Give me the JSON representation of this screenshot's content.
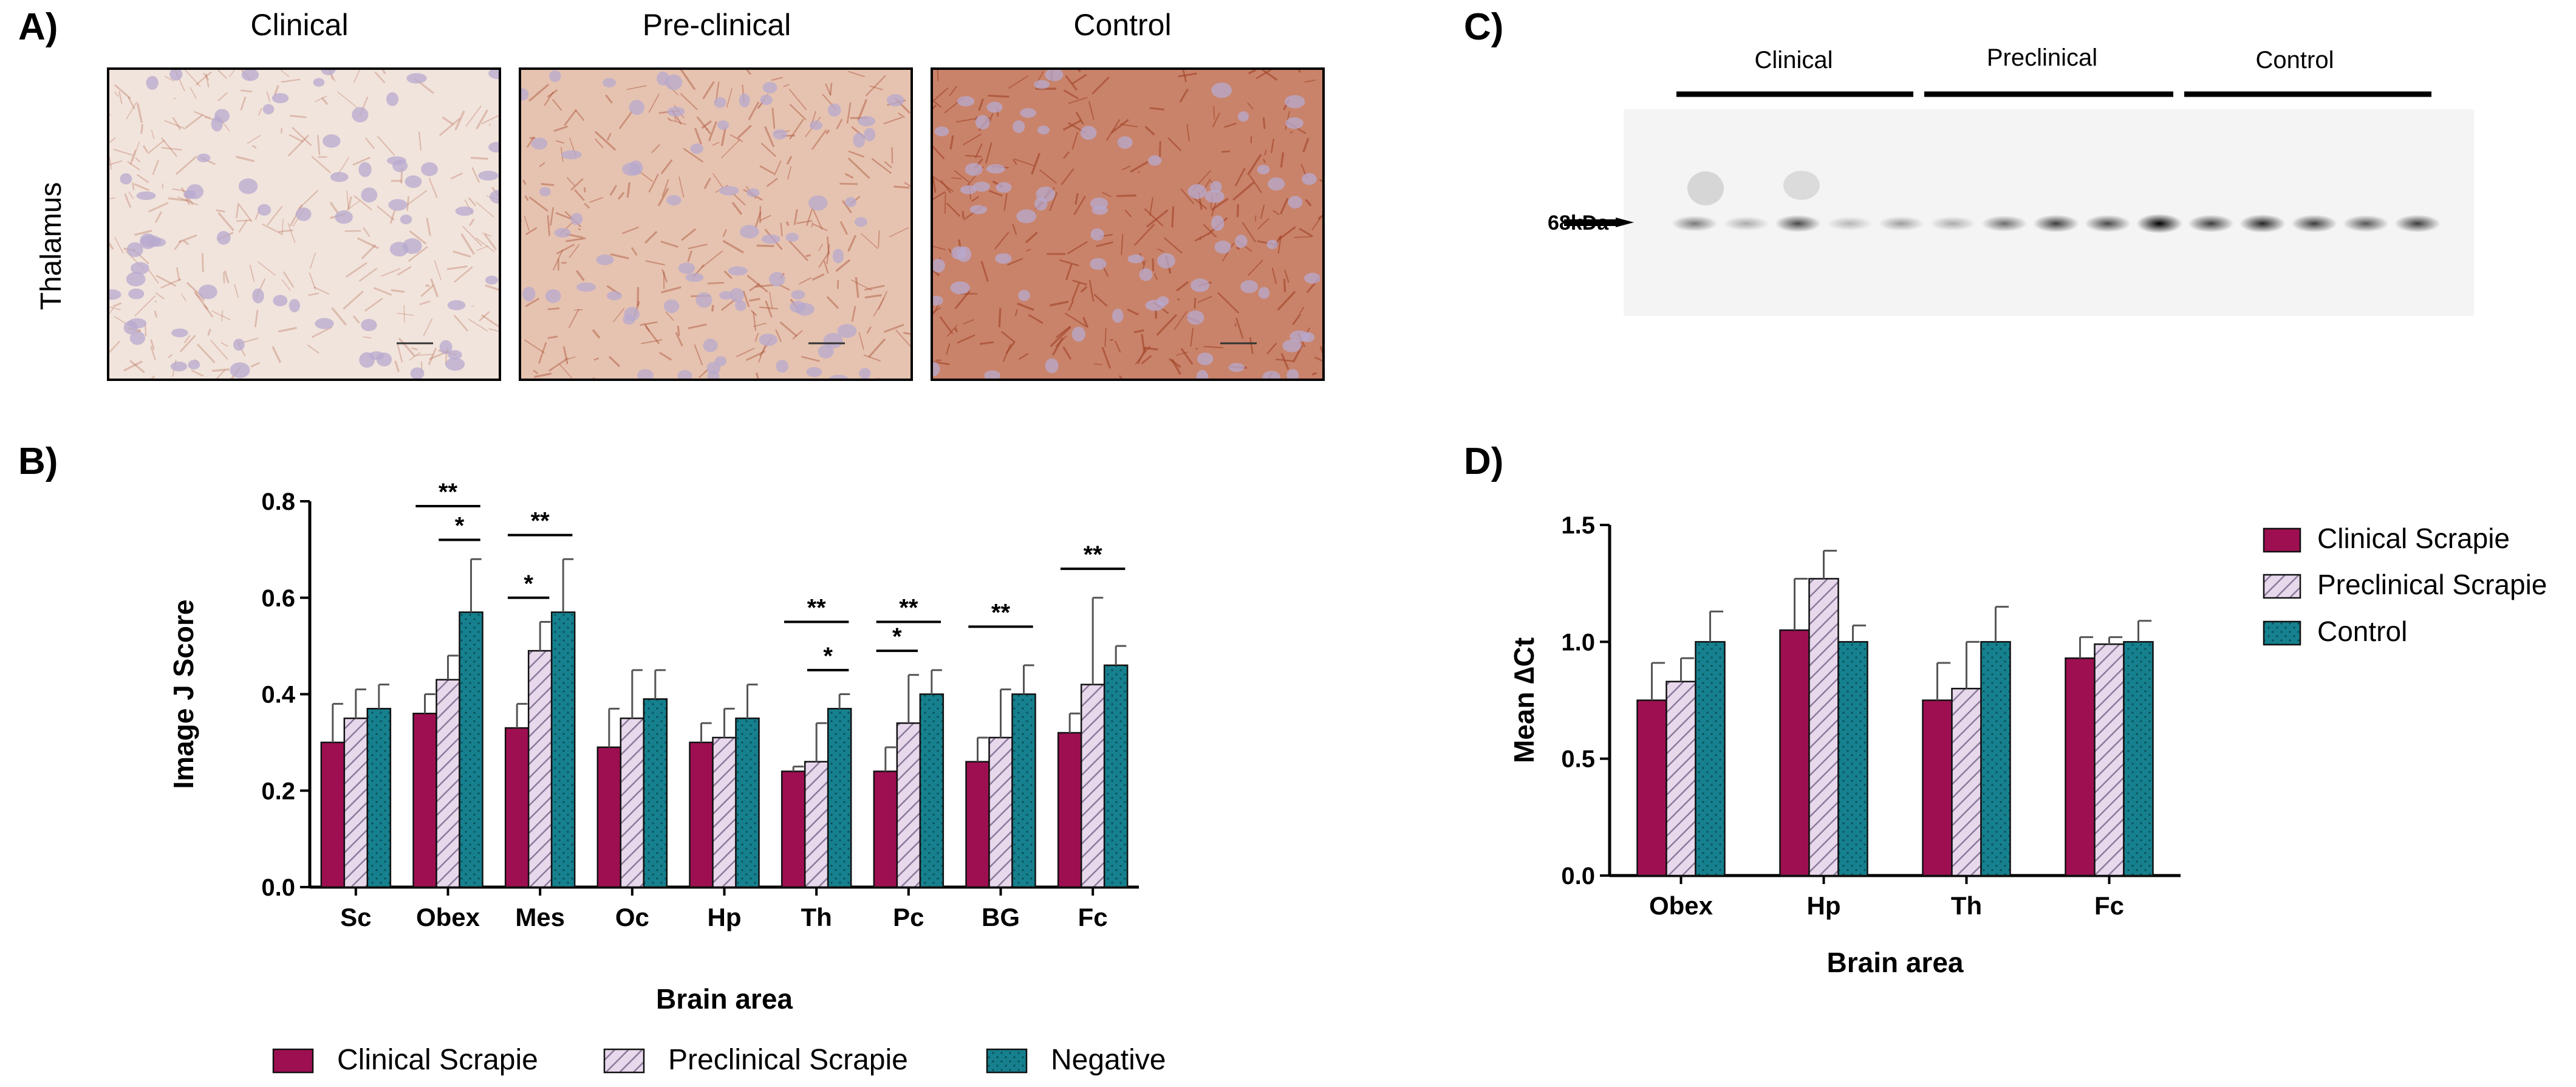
{
  "panel_labels": {
    "a": "A)",
    "b": "B)",
    "c": "C)",
    "d": "D)"
  },
  "panel_a": {
    "row_label": "Thalamus",
    "columns": [
      "Clinical",
      "Pre-clinical",
      "Control"
    ],
    "stain_colors": {
      "light": "#f1e4dc",
      "medium": "#e6c3b0",
      "dark": "#c9836a",
      "cells": "#b7a9cf",
      "fibers": "#a4462a"
    }
  },
  "panel_c": {
    "groups": [
      "Clinical",
      "Preclinical",
      "Control"
    ],
    "band_label": "68kDa",
    "lane_intensities": [
      0.35,
      0.15,
      0.55,
      0.1,
      0.2,
      0.15,
      0.4,
      0.6,
      0.55,
      0.85,
      0.6,
      0.7,
      0.6,
      0.5,
      0.6
    ]
  },
  "colors": {
    "clinical": "#9e0f52",
    "preclinical_fill": "#e8d8ec",
    "preclinical_hatch": "#8a7a9a",
    "control": "#16808e"
  },
  "chart_data": [
    {
      "id": "B",
      "type": "bar",
      "title": "",
      "xlabel": "Brain area",
      "ylabel": "Image J Score",
      "ylim": [
        0,
        0.8
      ],
      "yticks": [
        "0.0",
        "0.2",
        "0.4",
        "0.6",
        "0.8"
      ],
      "categories": [
        "Sc",
        "Obex",
        "Mes",
        "Oc",
        "Hp",
        "Th",
        "Pc",
        "BG",
        "Fc"
      ],
      "series": [
        {
          "name": "Clinical Scrapie",
          "values": [
            0.3,
            0.36,
            0.33,
            0.29,
            0.3,
            0.24,
            0.24,
            0.26,
            0.32
          ],
          "errors": [
            0.08,
            0.04,
            0.05,
            0.08,
            0.04,
            0.01,
            0.05,
            0.05,
            0.04
          ]
        },
        {
          "name": "Preclinical Scrapie",
          "values": [
            0.35,
            0.43,
            0.49,
            0.35,
            0.31,
            0.26,
            0.34,
            0.31,
            0.42
          ],
          "errors": [
            0.06,
            0.05,
            0.06,
            0.1,
            0.06,
            0.08,
            0.1,
            0.1,
            0.18
          ]
        },
        {
          "name": "Negative",
          "values": [
            0.37,
            0.57,
            0.57,
            0.39,
            0.35,
            0.37,
            0.4,
            0.4,
            0.46
          ],
          "errors": [
            0.05,
            0.11,
            0.11,
            0.06,
            0.07,
            0.03,
            0.05,
            0.06,
            0.04
          ]
        }
      ],
      "significance": [
        {
          "category": 1,
          "from": 0,
          "to": 2,
          "label": "**",
          "y": 0.79
        },
        {
          "category": 1,
          "from": 1,
          "to": 2,
          "label": "*",
          "y": 0.72
        },
        {
          "category": 2,
          "from": 0,
          "to": 1,
          "label": "*",
          "y": 0.6
        },
        {
          "category": 2,
          "from": 0,
          "to": 2,
          "label": "**",
          "y": 0.73
        },
        {
          "category": 5,
          "from": 0,
          "to": 2,
          "label": "**",
          "y": 0.55
        },
        {
          "category": 5,
          "from": 1,
          "to": 2,
          "label": "*",
          "y": 0.45
        },
        {
          "category": 6,
          "from": 0,
          "to": 1,
          "label": "*",
          "y": 0.49
        },
        {
          "category": 6,
          "from": 0,
          "to": 2,
          "label": "**",
          "y": 0.55
        },
        {
          "category": 7,
          "from": 0,
          "to": 2,
          "label": "**",
          "y": 0.54
        },
        {
          "category": 8,
          "from": 0,
          "to": 2,
          "label": "**",
          "y": 0.66
        }
      ],
      "legend": {
        "placement": "bottom",
        "entries": [
          "Clinical Scrapie",
          "Preclinical Scrapie",
          "Negative"
        ]
      }
    },
    {
      "id": "D",
      "type": "bar",
      "title": "",
      "xlabel": "Brain area",
      "ylabel": "Mean ∆Ct",
      "ylim": [
        0,
        1.5
      ],
      "yticks": [
        "0.0",
        "0.5",
        "1.0",
        "1.5"
      ],
      "categories": [
        "Obex",
        "Hp",
        "Th",
        "Fc"
      ],
      "series": [
        {
          "name": "Clinical Scrapie",
          "values": [
            0.75,
            1.05,
            0.75,
            0.93
          ],
          "errors": [
            0.16,
            0.22,
            0.16,
            0.09
          ]
        },
        {
          "name": "Preclinical Scrapie",
          "values": [
            0.83,
            1.27,
            0.8,
            0.99
          ],
          "errors": [
            0.1,
            0.12,
            0.2,
            0.03
          ]
        },
        {
          "name": "Control",
          "values": [
            1.0,
            1.0,
            1.0,
            1.0
          ],
          "errors": [
            0.13,
            0.07,
            0.15,
            0.09
          ]
        }
      ],
      "legend": {
        "placement": "right",
        "entries": [
          "Clinical Scrapie",
          "Preclinical Scrapie",
          "Control"
        ]
      }
    }
  ]
}
